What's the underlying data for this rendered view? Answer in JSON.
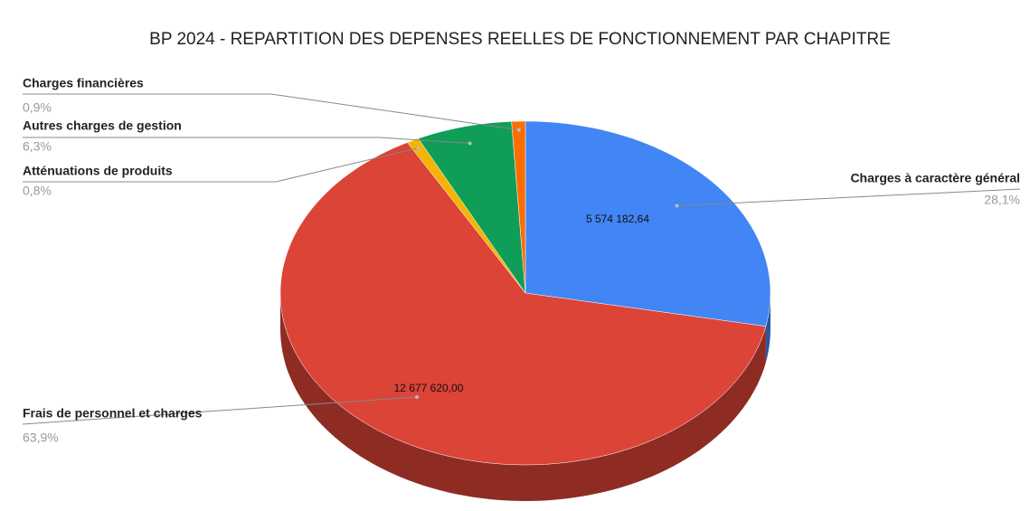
{
  "chart_data": {
    "type": "pie3d",
    "title": "BP 2024 - REPARTITION DES DEPENSES REELLES DE FONCTIONNEMENT PAR CHAPITRE",
    "categories": [
      "Charges à caractère général",
      "Frais de personnel et charges",
      "Atténuations de produits",
      "Autres charges de gestion",
      "Charges financières"
    ],
    "values": [
      28.1,
      63.9,
      0.8,
      6.3,
      0.9
    ],
    "value_labels": [
      "28,1%",
      "63,9%",
      "0,8%",
      "6,3%",
      "0,9%"
    ],
    "amount_labels": [
      "5 574 182,64",
      "12 677 620,00",
      null,
      null,
      null
    ],
    "colors": [
      "#4285f4",
      "#db4437",
      "#f4b400",
      "#0f9d58",
      "#ff6d01"
    ]
  }
}
